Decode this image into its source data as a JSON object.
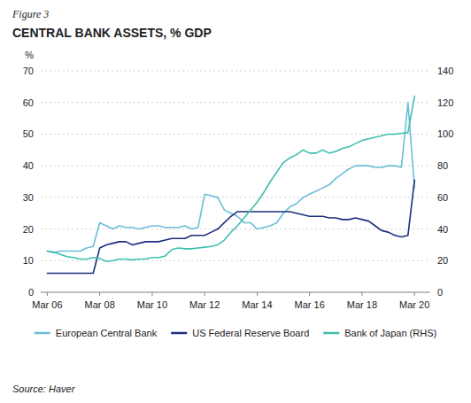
{
  "chart_data": {
    "type": "line",
    "title": "CENTRAL BANK ASSETS, % GDP",
    "ylabel": "%",
    "annotations": [
      "Figure 3",
      "Source: Haver"
    ],
    "x": [
      2006.25,
      2006.5,
      2006.75,
      2007.0,
      2007.25,
      2007.5,
      2007.75,
      2008.0,
      2008.25,
      2008.5,
      2008.75,
      2009.0,
      2009.25,
      2009.5,
      2009.75,
      2010.0,
      2010.25,
      2010.5,
      2010.75,
      2011.0,
      2011.25,
      2011.5,
      2011.75,
      2012.0,
      2012.25,
      2012.5,
      2012.75,
      2013.0,
      2013.25,
      2013.5,
      2013.75,
      2014.0,
      2014.25,
      2014.5,
      2014.75,
      2015.0,
      2015.25,
      2015.5,
      2015.75,
      2016.0,
      2016.25,
      2016.5,
      2016.75,
      2017.0,
      2017.25,
      2017.5,
      2017.75,
      2018.0,
      2018.25,
      2018.5,
      2018.75,
      2019.0,
      2019.25,
      2019.5,
      2019.75,
      2020.0,
      2020.25
    ],
    "series": [
      {
        "name": "European Central Bank",
        "color": "#6ABED8",
        "values": [
          13.0,
          12.5,
          13.0,
          13.0,
          13.0,
          13.0,
          14.0,
          14.5,
          22.0,
          21.0,
          20.0,
          21.0,
          20.5,
          20.5,
          20.0,
          20.5,
          21.0,
          21.0,
          20.5,
          20.5,
          20.5,
          21.0,
          20.0,
          20.5,
          31.0,
          30.5,
          30.0,
          26.0,
          25.0,
          24.0,
          22.0,
          22.0,
          20.0,
          20.5,
          21.0,
          22.0,
          25.0,
          27.0,
          28.0,
          30.0,
          31.0,
          32.0,
          33.0,
          34.0,
          36.0,
          37.5,
          39.0,
          40.0,
          40.0,
          40.0,
          39.5,
          39.5,
          40.0,
          40.0,
          39.5,
          60.0,
          33.0
        ]
      },
      {
        "name": "US Federal Reserve Board",
        "color": "#1B2F7E",
        "values": [
          6.0,
          6.0,
          6.0,
          6.0,
          6.0,
          6.0,
          6.0,
          6.0,
          14.0,
          15.0,
          15.5,
          16.0,
          16.0,
          15.0,
          15.5,
          16.0,
          16.0,
          16.0,
          16.5,
          17.0,
          17.0,
          17.0,
          18.0,
          18.0,
          18.0,
          19.0,
          20.0,
          22.0,
          24.0,
          25.5,
          25.5,
          25.5,
          25.5,
          25.5,
          25.5,
          25.5,
          25.5,
          25.5,
          25.0,
          24.5,
          24.0,
          24.0,
          24.0,
          23.5,
          23.5,
          23.0,
          23.0,
          23.5,
          23.0,
          22.5,
          21.0,
          19.5,
          19.0,
          18.0,
          17.5,
          18.0,
          35.5
        ]
      },
      {
        "name": "Bank of Japan (RHS)",
        "color": "#3DBFB0",
        "axis": "y2",
        "values": [
          26.0,
          25.5,
          24.0,
          22.5,
          22.0,
          21.0,
          21.0,
          22.0,
          21.5,
          19.5,
          20.0,
          21.0,
          21.0,
          20.5,
          21.0,
          21.0,
          22.0,
          22.0,
          23.0,
          27.0,
          28.0,
          27.5,
          27.5,
          28.0,
          28.5,
          29.0,
          30.0,
          33.0,
          38.0,
          42.0,
          47.0,
          52.0,
          57.0,
          63.0,
          70.0,
          76.0,
          82.0,
          85.0,
          87.0,
          90.0,
          88.0,
          88.0,
          90.0,
          88.0,
          89.0,
          91.0,
          92.0,
          94.0,
          96.0,
          97.0,
          98.0,
          99.0,
          100.0,
          100.0,
          100.5,
          101.0,
          124.0
        ]
      }
    ],
    "xlim": [
      2006.0,
      2020.85
    ],
    "xticks": [
      {
        "value": 2006.25,
        "label": "Mar 06"
      },
      {
        "value": 2008.25,
        "label": "Mar 08"
      },
      {
        "value": 2010.25,
        "label": "Mar 10"
      },
      {
        "value": 2012.25,
        "label": "Mar 12"
      },
      {
        "value": 2014.25,
        "label": "Mar 14"
      },
      {
        "value": 2016.25,
        "label": "Mar 16"
      },
      {
        "value": 2018.25,
        "label": "Mar 18"
      },
      {
        "value": 2020.25,
        "label": "Mar 20"
      }
    ],
    "ylim": [
      0,
      70
    ],
    "yticks": [
      0,
      10,
      20,
      30,
      40,
      50,
      60,
      70
    ],
    "y2lim": [
      0,
      140
    ],
    "y2ticks": [
      0,
      20,
      40,
      60,
      80,
      100,
      120,
      140
    ],
    "grid": true,
    "legend": "bottom"
  }
}
